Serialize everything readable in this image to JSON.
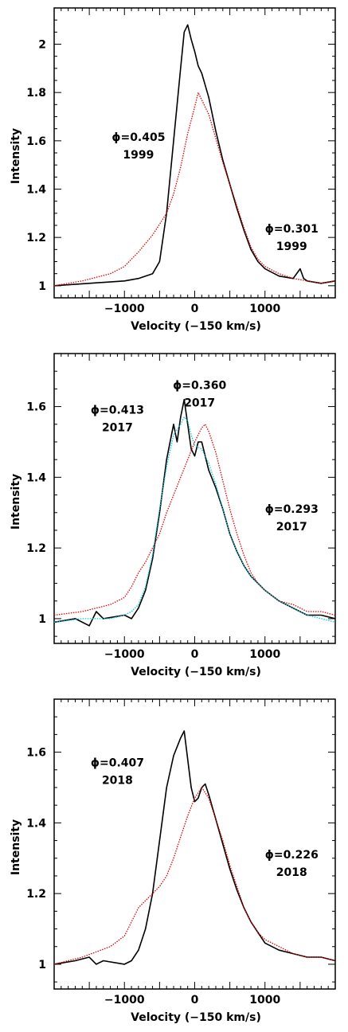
{
  "chart_data": [
    {
      "type": "line",
      "xlabel": "Velocity (−150 km/s)",
      "ylabel": "Intensity",
      "xlim": [
        -2000,
        2000
      ],
      "ylim": [
        0.95,
        2.15
      ],
      "xticks": [
        -1000,
        0,
        1000
      ],
      "yticks": [
        1,
        1.2,
        1.4,
        1.6,
        1.8,
        2
      ],
      "ytick_labels": [
        "1",
        "1.2",
        "1.4",
        "1.6",
        "1.8",
        "2"
      ],
      "xtick_labels": [
        "−1000",
        "0",
        "1000"
      ],
      "annotations": [
        {
          "phase": "ϕ=0.405",
          "year": "1999",
          "x": -800,
          "y": 1.6
        },
        {
          "phase": "ϕ=0.301",
          "year": "1999",
          "x": 1380,
          "y": 1.22
        }
      ],
      "series": [
        {
          "color": "#000000",
          "style": "solid",
          "x": [
            -2000,
            -1500,
            -1000,
            -800,
            -600,
            -500,
            -400,
            -300,
            -200,
            -150,
            -100,
            -50,
            0,
            50,
            100,
            200,
            300,
            400,
            500,
            600,
            700,
            800,
            900,
            1000,
            1200,
            1400,
            1500,
            1550,
            1600,
            1800,
            2000
          ],
          "y": [
            1.0,
            1.01,
            1.02,
            1.03,
            1.05,
            1.1,
            1.3,
            1.6,
            1.9,
            2.05,
            2.08,
            2.02,
            1.97,
            1.91,
            1.88,
            1.78,
            1.64,
            1.52,
            1.42,
            1.32,
            1.23,
            1.15,
            1.1,
            1.07,
            1.04,
            1.03,
            1.07,
            1.03,
            1.02,
            1.01,
            1.02
          ]
        },
        {
          "color": "#e00000",
          "style": "dotted",
          "x": [
            -2000,
            -1600,
            -1200,
            -1000,
            -800,
            -600,
            -400,
            -300,
            -200,
            -100,
            0,
            50,
            100,
            200,
            300,
            400,
            500,
            600,
            700,
            800,
            900,
            1000,
            1200,
            1400,
            1600,
            1800,
            2000
          ],
          "y": [
            1.0,
            1.02,
            1.05,
            1.08,
            1.14,
            1.21,
            1.3,
            1.38,
            1.49,
            1.63,
            1.74,
            1.8,
            1.77,
            1.71,
            1.61,
            1.51,
            1.42,
            1.33,
            1.24,
            1.16,
            1.11,
            1.08,
            1.05,
            1.03,
            1.02,
            1.01,
            1.02
          ]
        }
      ]
    },
    {
      "type": "line",
      "xlabel": "Velocity (−150 km/s)",
      "ylabel": "Intensity",
      "xlim": [
        -2000,
        2000
      ],
      "ylim": [
        0.93,
        1.75
      ],
      "xticks": [
        -1000,
        0,
        1000
      ],
      "yticks": [
        1,
        1.2,
        1.4,
        1.6
      ],
      "ytick_labels": [
        "1",
        "1.2",
        "1.4",
        "1.6"
      ],
      "xtick_labels": [
        "−1000",
        "0",
        "1000"
      ],
      "annotations": [
        {
          "phase": "ϕ=0.413",
          "year": "2017",
          "x": -1100,
          "y": 1.58
        },
        {
          "phase": "ϕ=0.360",
          "year": "2017",
          "x": 70,
          "y": 1.65
        },
        {
          "phase": "ϕ=0.293",
          "year": "2017",
          "x": 1380,
          "y": 1.3
        }
      ],
      "series": [
        {
          "color": "#000000",
          "style": "solid",
          "x": [
            -2000,
            -1700,
            -1500,
            -1400,
            -1300,
            -1000,
            -900,
            -800,
            -700,
            -600,
            -500,
            -400,
            -300,
            -250,
            -200,
            -150,
            -100,
            -50,
            0,
            50,
            100,
            150,
            200,
            300,
            400,
            500,
            600,
            700,
            800,
            900,
            1000,
            1200,
            1400,
            1600,
            1800,
            2000
          ],
          "y": [
            0.99,
            1.0,
            0.98,
            1.02,
            1.0,
            1.01,
            1.0,
            1.03,
            1.08,
            1.17,
            1.3,
            1.45,
            1.55,
            1.5,
            1.57,
            1.62,
            1.55,
            1.48,
            1.46,
            1.5,
            1.5,
            1.46,
            1.42,
            1.37,
            1.31,
            1.24,
            1.19,
            1.15,
            1.12,
            1.1,
            1.08,
            1.05,
            1.03,
            1.01,
            1.01,
            1.0
          ]
        },
        {
          "color": "#e00000",
          "style": "dotted",
          "x": [
            -2000,
            -1600,
            -1200,
            -1000,
            -900,
            -800,
            -700,
            -600,
            -500,
            -400,
            -300,
            -200,
            -100,
            0,
            100,
            150,
            200,
            300,
            400,
            500,
            600,
            700,
            800,
            900,
            1000,
            1200,
            1400,
            1600,
            1800,
            2000
          ],
          "y": [
            1.01,
            1.02,
            1.04,
            1.06,
            1.09,
            1.13,
            1.16,
            1.2,
            1.24,
            1.3,
            1.35,
            1.4,
            1.45,
            1.5,
            1.54,
            1.55,
            1.53,
            1.47,
            1.39,
            1.31,
            1.24,
            1.18,
            1.13,
            1.1,
            1.08,
            1.05,
            1.04,
            1.02,
            1.02,
            1.01
          ]
        },
        {
          "color": "#00c8e0",
          "style": "dotted",
          "x": [
            -2000,
            -1600,
            -1200,
            -1000,
            -900,
            -800,
            -700,
            -600,
            -500,
            -400,
            -300,
            -200,
            -150,
            -100,
            -50,
            0,
            100,
            200,
            300,
            400,
            500,
            600,
            700,
            800,
            900,
            1000,
            1200,
            1400,
            1600,
            1800,
            2000
          ],
          "y": [
            0.99,
            1.0,
            1.0,
            1.01,
            1.02,
            1.04,
            1.09,
            1.18,
            1.31,
            1.43,
            1.52,
            1.55,
            1.57,
            1.56,
            1.52,
            1.49,
            1.48,
            1.44,
            1.38,
            1.31,
            1.24,
            1.19,
            1.15,
            1.12,
            1.1,
            1.08,
            1.05,
            1.03,
            1.01,
            1.0,
            0.99
          ]
        }
      ]
    },
    {
      "type": "line",
      "xlabel": "Velocity (−150 km/s)",
      "ylabel": "Intensity",
      "xlim": [
        -2000,
        2000
      ],
      "ylim": [
        0.93,
        1.75
      ],
      "xticks": [
        -1000,
        0,
        1000
      ],
      "yticks": [
        1,
        1.2,
        1.4,
        1.6
      ],
      "ytick_labels": [
        "1",
        "1.2",
        "1.4",
        "1.6"
      ],
      "xtick_labels": [
        "−1000",
        "0",
        "1000"
      ],
      "annotations": [
        {
          "phase": "ϕ=0.407",
          "year": "2018",
          "x": -1100,
          "y": 1.56
        },
        {
          "phase": "ϕ=0.226",
          "year": "2018",
          "x": 1380,
          "y": 1.3
        }
      ],
      "series": [
        {
          "color": "#000000",
          "style": "solid",
          "x": [
            -2000,
            -1700,
            -1500,
            -1400,
            -1300,
            -1000,
            -900,
            -800,
            -700,
            -600,
            -500,
            -400,
            -300,
            -200,
            -150,
            -100,
            -50,
            0,
            50,
            100,
            150,
            200,
            300,
            400,
            500,
            600,
            700,
            800,
            900,
            1000,
            1200,
            1400,
            1600,
            1800,
            2000
          ],
          "y": [
            1.0,
            1.01,
            1.02,
            1.0,
            1.01,
            1.0,
            1.01,
            1.04,
            1.1,
            1.2,
            1.35,
            1.5,
            1.59,
            1.64,
            1.66,
            1.58,
            1.5,
            1.46,
            1.47,
            1.5,
            1.51,
            1.48,
            1.41,
            1.34,
            1.27,
            1.21,
            1.16,
            1.12,
            1.09,
            1.06,
            1.04,
            1.03,
            1.02,
            1.02,
            1.01
          ]
        },
        {
          "color": "#e00000",
          "style": "dotted",
          "x": [
            -2000,
            -1600,
            -1200,
            -1000,
            -900,
            -800,
            -700,
            -600,
            -500,
            -400,
            -300,
            -200,
            -100,
            0,
            100,
            200,
            300,
            400,
            500,
            600,
            700,
            800,
            900,
            1000,
            1200,
            1400,
            1600,
            1800,
            2000
          ],
          "y": [
            1.0,
            1.02,
            1.05,
            1.08,
            1.12,
            1.16,
            1.18,
            1.2,
            1.22,
            1.25,
            1.3,
            1.36,
            1.42,
            1.47,
            1.5,
            1.47,
            1.41,
            1.35,
            1.28,
            1.22,
            1.16,
            1.12,
            1.09,
            1.07,
            1.05,
            1.03,
            1.02,
            1.02,
            1.01
          ]
        }
      ]
    }
  ]
}
